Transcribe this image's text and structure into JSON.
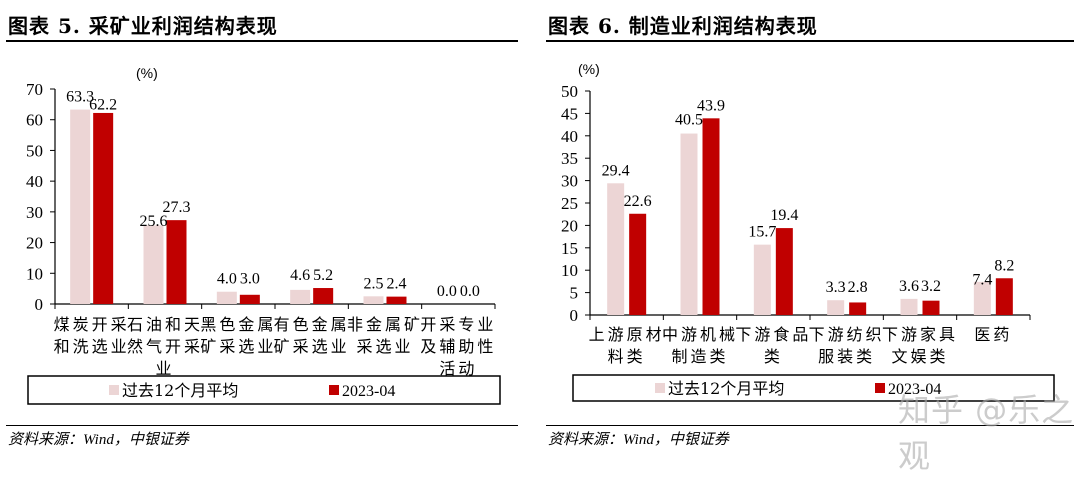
{
  "colors": {
    "avg": "#ecd5d5",
    "current": "#c00000",
    "axis": "#000000"
  },
  "chart_data": [
    {
      "type": "bar",
      "title": "图表 5. 采矿业利润结构表现",
      "unit_label": "(%)",
      "xlabel": "",
      "ylabel": "(%)",
      "ylim": [
        0,
        70
      ],
      "yticks": [
        0,
        10,
        20,
        30,
        40,
        50,
        60,
        70
      ],
      "categories": [
        "煤炭开采和洗选业",
        "石油和天然气开采业",
        "黑色金属矿采选业",
        "有色金属矿采选业",
        "非金属矿采选业",
        "开采专业及辅助性活动"
      ],
      "category_lines": [
        [
          "煤炭开采",
          "和洗选业"
        ],
        [
          "石油和天",
          "然气开采",
          "业"
        ],
        [
          "黑色金属",
          "矿采选业"
        ],
        [
          "有色金属",
          "矿采选业"
        ],
        [
          "非金属矿",
          "采选业"
        ],
        [
          "开采专业",
          "及辅助性",
          "活动"
        ]
      ],
      "series": [
        {
          "name": "过去12个月平均",
          "values": [
            63.3,
            25.6,
            4.0,
            4.6,
            2.5,
            0.0
          ]
        },
        {
          "name": "2023-04",
          "values": [
            62.2,
            27.3,
            3.0,
            5.2,
            2.4,
            0.0
          ]
        }
      ],
      "legend_position": "bottom",
      "grid": false,
      "source": "资料来源：Wind，中银证券"
    },
    {
      "type": "bar",
      "title": "图表 6. 制造业利润结构表现",
      "unit_label": "(%)",
      "xlabel": "",
      "ylabel": "(%)",
      "ylim": [
        0,
        50
      ],
      "yticks": [
        0,
        5,
        10,
        15,
        20,
        25,
        30,
        35,
        40,
        45,
        50
      ],
      "categories": [
        "上游原材料类",
        "中游机械制造类",
        "下游食品类",
        "下游纺织服装类",
        "下游家具文娱类",
        "医药"
      ],
      "category_lines": [
        [
          "上游原材",
          "料类"
        ],
        [
          "中游机械",
          "制造类"
        ],
        [
          "下游食品",
          "类"
        ],
        [
          "下游纺织",
          "服装类"
        ],
        [
          "下游家具",
          "文娱类"
        ],
        [
          "医药"
        ]
      ],
      "series": [
        {
          "name": "过去12个月平均",
          "values": [
            29.4,
            40.5,
            15.7,
            3.3,
            3.6,
            7.4
          ]
        },
        {
          "name": "2023-04",
          "values": [
            22.6,
            43.9,
            19.4,
            2.8,
            3.2,
            8.2
          ]
        }
      ],
      "legend_position": "bottom",
      "grid": false,
      "source": "资料来源：Wind，中银证券"
    }
  ],
  "watermark": "知乎 @乐之观"
}
